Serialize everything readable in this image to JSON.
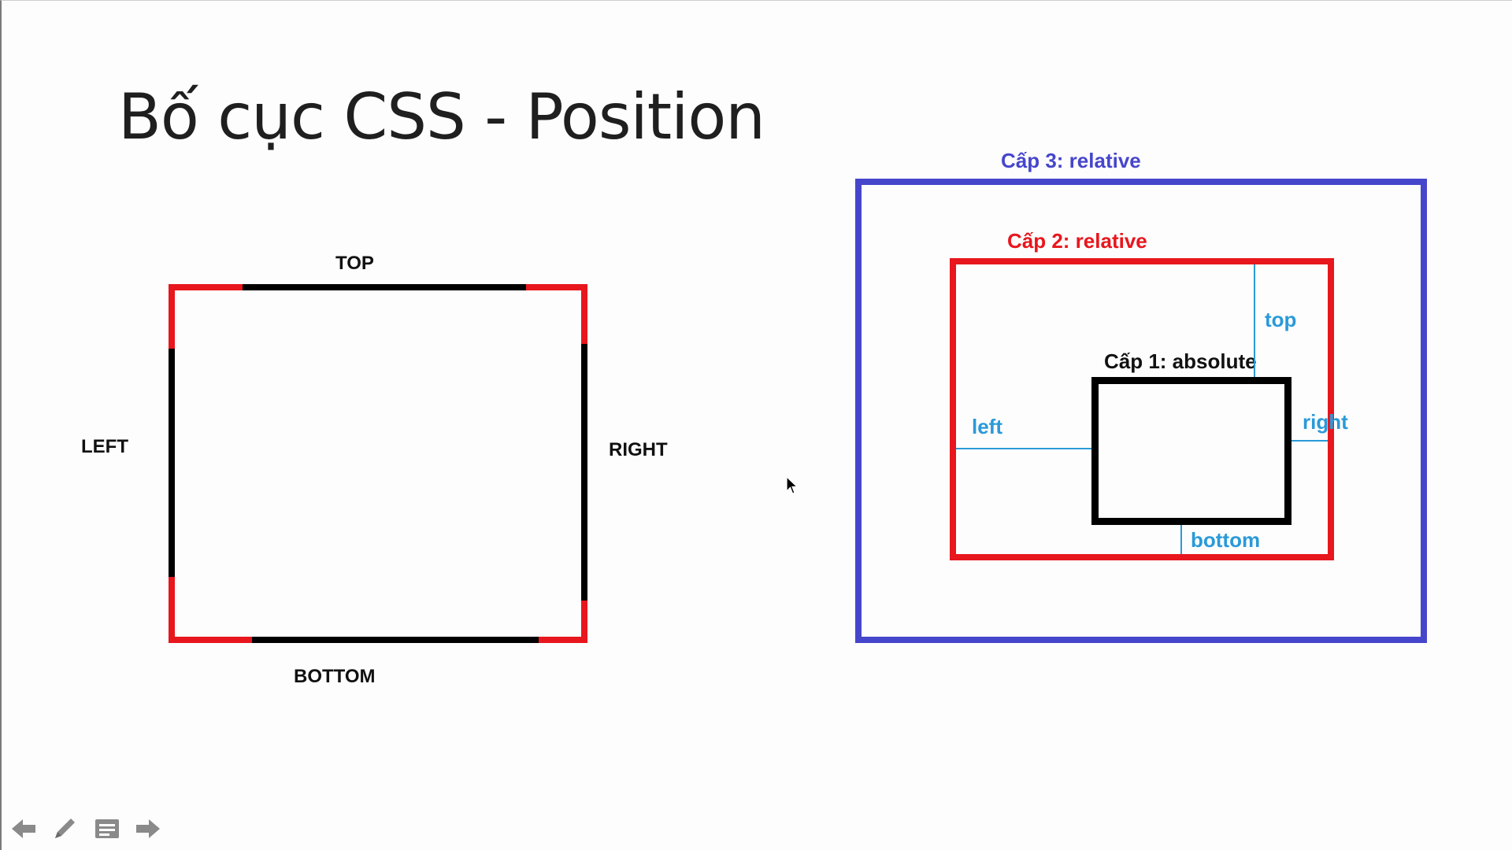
{
  "slide": {
    "title": "Bố cục CSS - Position"
  },
  "left_diagram": {
    "top_label": "TOP",
    "left_label": "LEFT",
    "right_label": "RIGHT",
    "bottom_label": "BOTTOM"
  },
  "right_diagram": {
    "level3_label": "Cấp 3: relative",
    "level2_label": "Cấp 2: relative",
    "level1_label": "Cấp 1: absolute",
    "top_label": "top",
    "left_label": "left",
    "right_label": "right",
    "bottom_label": "bottom"
  },
  "colors": {
    "blue": "#4646cc",
    "red": "#e8161d",
    "cyan": "#2a9ad8",
    "black": "#000000"
  },
  "nav": {
    "icons": [
      "arrow-left-icon",
      "pen-icon",
      "notes-icon",
      "arrow-right-icon"
    ]
  }
}
